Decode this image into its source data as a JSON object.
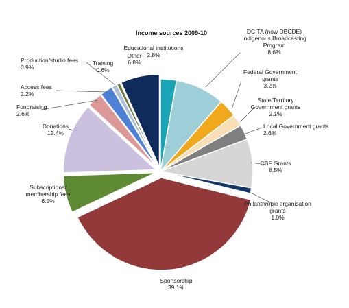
{
  "chart_data": {
    "type": "pie",
    "title": "Income sources 2009-10",
    "unit": "%",
    "slices": [
      {
        "label": [
          "Educational institutions"
        ],
        "value": 2.8,
        "value_label": "2.8%",
        "color": "#1aa6b7"
      },
      {
        "label": [
          "DCITA (now DBCDE)",
          "Indigenous Broadcasting",
          "Program"
        ],
        "value": 8.6,
        "value_label": "8.6%",
        "color": "#9ecfd8"
      },
      {
        "label": [
          "Federal Government",
          "grants"
        ],
        "value": 3.2,
        "value_label": "3.2%",
        "color": "#f0a81c"
      },
      {
        "label": [
          "State/Territory",
          "Government grants"
        ],
        "value": 2.1,
        "value_label": "2.1%",
        "color": "#f8dfb8"
      },
      {
        "label": [
          "Local Government grants"
        ],
        "value": 2.6,
        "value_label": "2.6%",
        "color": "#7f7f7f"
      },
      {
        "label": [
          "CBF Grants"
        ],
        "value": 8.5,
        "value_label": "8.5%",
        "color": "#d6d6d6"
      },
      {
        "label": [
          "Philanthropic organisation",
          "grants"
        ],
        "value": 1.0,
        "value_label": "1.0%",
        "color": "#15386b"
      },
      {
        "label": [
          "Sponsorship"
        ],
        "value": 39.1,
        "value_label": "39.1%",
        "color": "#94393a"
      },
      {
        "label": [
          "Subscriptions/",
          "membership fees"
        ],
        "value": 6.5,
        "value_label": "6.5%",
        "color": "#5f8a34"
      },
      {
        "label": [
          "Donations"
        ],
        "value": 12.4,
        "value_label": "12.4%",
        "color": "#cbc0dd"
      },
      {
        "label": [
          "Fundraising"
        ],
        "value": 2.6,
        "value_label": "2.6%",
        "color": "#dc9797"
      },
      {
        "label": [
          "Access fees"
        ],
        "value": 2.2,
        "value_label": "2.2%",
        "color": "#4e81d4"
      },
      {
        "label": [
          "Production/studio fees"
        ],
        "value": 0.9,
        "value_label": "0.9%",
        "color": "#aebfd9"
      },
      {
        "label": [
          "Training"
        ],
        "value": 0.6,
        "value_label": "0.6%",
        "color": "#6b7a3a"
      },
      {
        "label": [
          "Other"
        ],
        "value": 6.8,
        "value_label": "6.8%",
        "color": "#0f2b5c"
      }
    ]
  }
}
